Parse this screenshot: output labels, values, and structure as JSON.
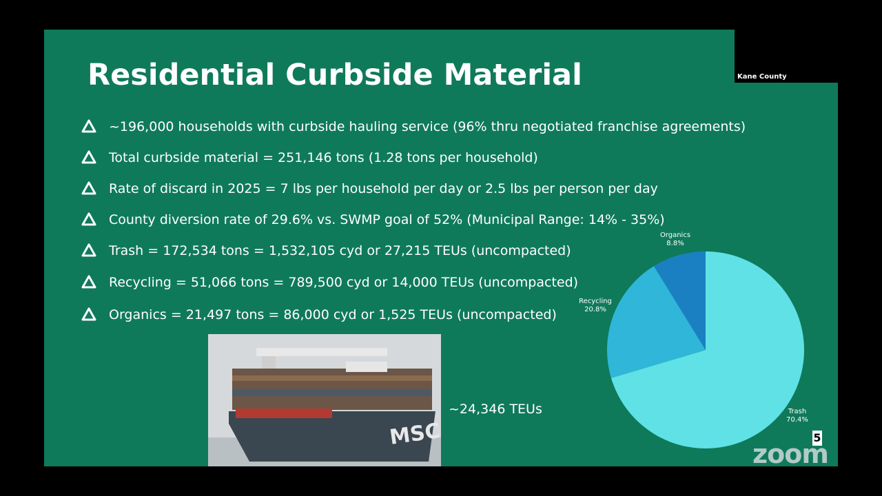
{
  "meeting": {
    "participant_label": "Kane County",
    "app_logo": "zoom",
    "page_number": "5"
  },
  "slide": {
    "title": "Residential Curbside Material",
    "bullets": [
      "~196,000 households with curbside hauling service (96% thru negotiated franchise agreements)",
      "Total curbside material = 251,146 tons (1.28 tons per household)",
      "Rate of discard in 2025 = 7 lbs per household per day or 2.5 lbs per person per day",
      "County diversion rate of 29.6% vs. SWMP goal of 52% (Municipal Range: 14% - 35%)",
      "Trash = 172,534 tons = 1,532,105 cyd or 27,215 TEUs (uncompacted)",
      "Recycling = 51,066 tons = 789,500 cyd or 14,000 TEUs (uncompacted)",
      "Organics = 21,497 tons = 86,000 cyd or 1,525 TEUs (uncompacted)"
    ],
    "image_caption": "~24,346 TEUs"
  },
  "chart_data": {
    "type": "pie",
    "categories": [
      "Trash",
      "Recycling",
      "Organics"
    ],
    "values": [
      70.4,
      20.8,
      8.8
    ],
    "value_labels": [
      "70.4%",
      "20.8%",
      "8.8%"
    ],
    "colors": [
      "#5fe1e6",
      "#2fb6d9",
      "#1b80c1"
    ]
  }
}
